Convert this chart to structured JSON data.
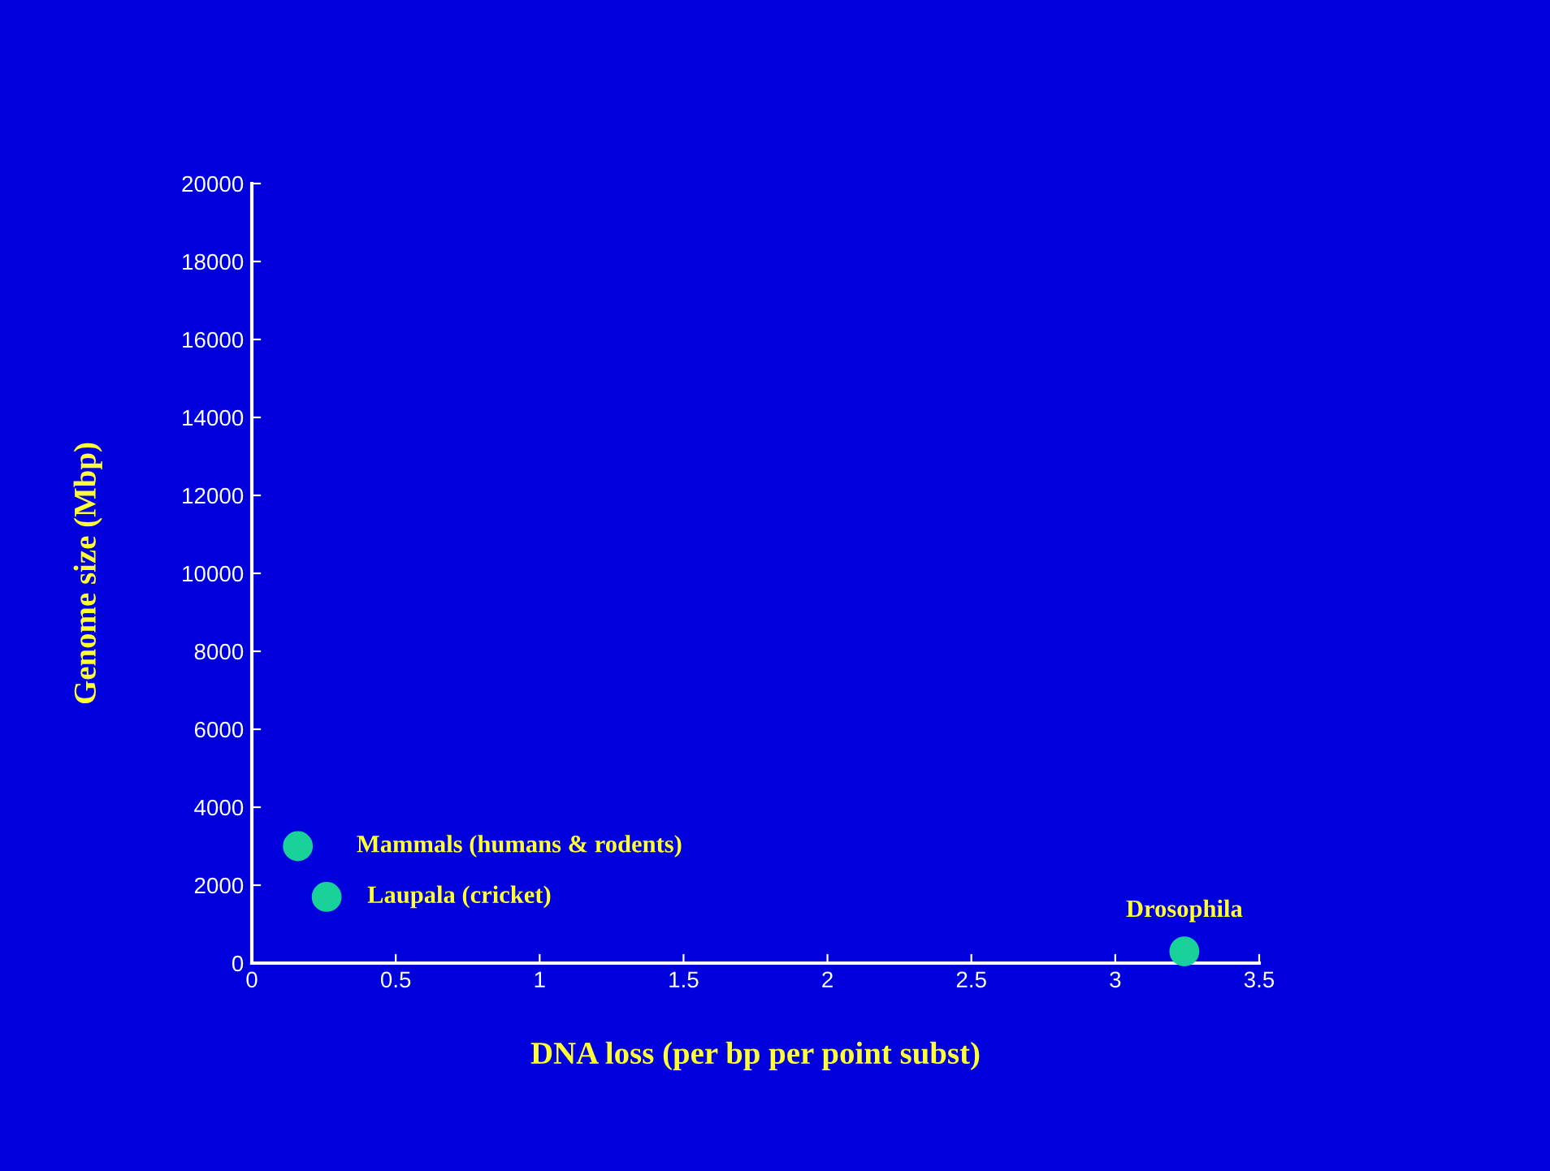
{
  "chart_data": {
    "type": "scatter",
    "xlabel": "DNA loss (per bp per point subst)",
    "ylabel": "Genome size (Mbp)",
    "x": [
      0.16,
      0.26,
      3.24
    ],
    "series": [
      {
        "color": "#19d29a",
        "values": [
          3000,
          1700,
          300
        ]
      }
    ],
    "marker": "circle",
    "xlim": [
      0,
      3.5
    ],
    "xticks": [
      0,
      0.5,
      1,
      1.5,
      2,
      2.5,
      3,
      3.5
    ],
    "ylim": [
      0,
      20000
    ],
    "yticks": [
      0,
      2000,
      4000,
      6000,
      8000,
      10000,
      12000,
      14000,
      16000,
      18000,
      20000
    ],
    "grid": false,
    "legend": false,
    "annotations": [
      {
        "text": "Mammals (humans & rodents)",
        "x": 0.16,
        "y": 3000
      },
      {
        "text": "Laupala (cricket)",
        "x": 0.26,
        "y": 1700
      },
      {
        "text": "Drosophila",
        "x": 3.24,
        "y": 300
      }
    ]
  }
}
